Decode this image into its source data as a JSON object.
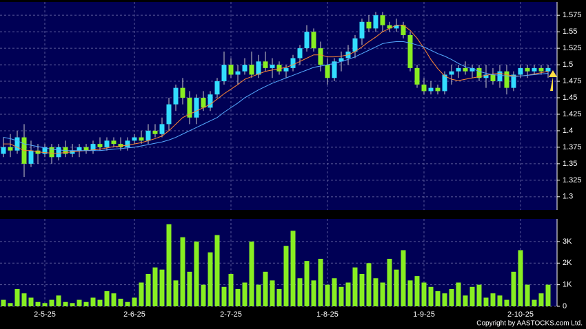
{
  "chart_data": [
    {
      "type": "candlestick",
      "up_color": "#33ddff",
      "down_color": "#88ee22",
      "grid": true,
      "ylim": [
        1.28,
        1.595
      ],
      "yticks": [
        1.3,
        1.325,
        1.35,
        1.375,
        1.4,
        1.425,
        1.45,
        1.475,
        1.5,
        1.525,
        1.55,
        1.575
      ],
      "ohlc": [
        [
          1.365,
          1.39,
          1.36,
          1.375
        ],
        [
          1.375,
          1.395,
          1.36,
          1.37
        ],
        [
          1.37,
          1.4,
          1.365,
          1.39
        ],
        [
          1.39,
          1.41,
          1.33,
          1.35
        ],
        [
          1.35,
          1.385,
          1.345,
          1.37
        ],
        [
          1.37,
          1.38,
          1.35,
          1.365
        ],
        [
          1.365,
          1.38,
          1.36,
          1.375
        ],
        [
          1.375,
          1.38,
          1.35,
          1.36
        ],
        [
          1.36,
          1.38,
          1.355,
          1.375
        ],
        [
          1.375,
          1.385,
          1.36,
          1.365
        ],
        [
          1.365,
          1.38,
          1.36,
          1.37
        ],
        [
          1.37,
          1.38,
          1.36,
          1.375
        ],
        [
          1.375,
          1.38,
          1.365,
          1.37
        ],
        [
          1.37,
          1.385,
          1.365,
          1.38
        ],
        [
          1.38,
          1.39,
          1.37,
          1.375
        ],
        [
          1.375,
          1.39,
          1.37,
          1.385
        ],
        [
          1.385,
          1.39,
          1.375,
          1.38
        ],
        [
          1.38,
          1.39,
          1.37,
          1.375
        ],
        [
          1.375,
          1.39,
          1.37,
          1.385
        ],
        [
          1.385,
          1.395,
          1.38,
          1.39
        ],
        [
          1.39,
          1.4,
          1.38,
          1.385
        ],
        [
          1.385,
          1.41,
          1.38,
          1.4
        ],
        [
          1.4,
          1.41,
          1.39,
          1.395
        ],
        [
          1.395,
          1.42,
          1.39,
          1.41
        ],
        [
          1.41,
          1.45,
          1.4,
          1.44
        ],
        [
          1.44,
          1.47,
          1.43,
          1.465
        ],
        [
          1.465,
          1.48,
          1.44,
          1.45
        ],
        [
          1.45,
          1.46,
          1.41,
          1.42
        ],
        [
          1.42,
          1.455,
          1.41,
          1.45
        ],
        [
          1.45,
          1.46,
          1.43,
          1.435
        ],
        [
          1.435,
          1.46,
          1.43,
          1.455
        ],
        [
          1.455,
          1.48,
          1.45,
          1.475
        ],
        [
          1.475,
          1.52,
          1.47,
          1.5
        ],
        [
          1.5,
          1.51,
          1.48,
          1.485
        ],
        [
          1.485,
          1.5,
          1.47,
          1.49
        ],
        [
          1.49,
          1.51,
          1.485,
          1.5
        ],
        [
          1.5,
          1.52,
          1.48,
          1.485
        ],
        [
          1.485,
          1.515,
          1.48,
          1.505
        ],
        [
          1.505,
          1.52,
          1.49,
          1.495
        ],
        [
          1.495,
          1.51,
          1.48,
          1.5
        ],
        [
          1.5,
          1.505,
          1.485,
          1.49
        ],
        [
          1.49,
          1.5,
          1.48,
          1.495
        ],
        [
          1.495,
          1.515,
          1.49,
          1.51
        ],
        [
          1.51,
          1.53,
          1.5,
          1.525
        ],
        [
          1.525,
          1.56,
          1.52,
          1.55
        ],
        [
          1.55,
          1.555,
          1.52,
          1.525
        ],
        [
          1.525,
          1.535,
          1.49,
          1.5
        ],
        [
          1.5,
          1.51,
          1.47,
          1.48
        ],
        [
          1.48,
          1.51,
          1.475,
          1.505
        ],
        [
          1.505,
          1.52,
          1.49,
          1.51
        ],
        [
          1.51,
          1.53,
          1.5,
          1.52
        ],
        [
          1.52,
          1.545,
          1.51,
          1.54
        ],
        [
          1.54,
          1.57,
          1.53,
          1.565
        ],
        [
          1.565,
          1.575,
          1.55,
          1.555
        ],
        [
          1.555,
          1.58,
          1.55,
          1.575
        ],
        [
          1.575,
          1.58,
          1.55,
          1.56
        ],
        [
          1.56,
          1.565,
          1.55,
          1.555
        ],
        [
          1.555,
          1.57,
          1.55,
          1.56
        ],
        [
          1.56,
          1.565,
          1.54,
          1.545
        ],
        [
          1.545,
          1.55,
          1.49,
          1.495
        ],
        [
          1.495,
          1.5,
          1.465,
          1.47
        ],
        [
          1.47,
          1.48,
          1.455,
          1.46
        ],
        [
          1.46,
          1.475,
          1.455,
          1.465
        ],
        [
          1.465,
          1.47,
          1.455,
          1.46
        ],
        [
          1.46,
          1.49,
          1.455,
          1.485
        ],
        [
          1.485,
          1.5,
          1.47,
          1.49
        ],
        [
          1.49,
          1.5,
          1.48,
          1.495
        ],
        [
          1.495,
          1.505,
          1.485,
          1.49
        ],
        [
          1.49,
          1.5,
          1.48,
          1.495
        ],
        [
          1.495,
          1.5,
          1.475,
          1.48
        ],
        [
          1.48,
          1.5,
          1.465,
          1.485
        ],
        [
          1.485,
          1.495,
          1.47,
          1.475
        ],
        [
          1.475,
          1.5,
          1.465,
          1.49
        ],
        [
          1.49,
          1.5,
          1.455,
          1.465
        ],
        [
          1.465,
          1.49,
          1.46,
          1.485
        ],
        [
          1.485,
          1.5,
          1.48,
          1.495
        ],
        [
          1.495,
          1.5,
          1.48,
          1.49
        ],
        [
          1.49,
          1.5,
          1.485,
          1.495
        ],
        [
          1.495,
          1.5,
          1.485,
          1.49
        ],
        [
          1.49,
          1.5,
          1.48,
          1.495
        ]
      ],
      "lines": [
        {
          "color": "#ff8833",
          "values": [
            1.38,
            1.38,
            1.375,
            1.37,
            1.37,
            1.368,
            1.367,
            1.366,
            1.366,
            1.367,
            1.368,
            1.369,
            1.37,
            1.371,
            1.372,
            1.374,
            1.376,
            1.377,
            1.378,
            1.38,
            1.382,
            1.385,
            1.388,
            1.392,
            1.4,
            1.41,
            1.42,
            1.425,
            1.43,
            1.435,
            1.44,
            1.448,
            1.456,
            1.463,
            1.47,
            1.478,
            1.482,
            1.486,
            1.49,
            1.492,
            1.494,
            1.496,
            1.5,
            1.505,
            1.51,
            1.515,
            1.515,
            1.512,
            1.512,
            1.513,
            1.515,
            1.52,
            1.527,
            1.535,
            1.542,
            1.55,
            1.555,
            1.56,
            1.56,
            1.552,
            1.54,
            1.525,
            1.508,
            1.494,
            1.483,
            1.478,
            1.476,
            1.478,
            1.48,
            1.482,
            1.484,
            1.486,
            1.487,
            1.485,
            1.483,
            1.483,
            1.484,
            1.486,
            1.488,
            1.49
          ]
        },
        {
          "color": "#55aaff",
          "values": [
            1.39,
            1.388,
            1.385,
            1.38,
            1.378,
            1.376,
            1.374,
            1.372,
            1.371,
            1.37,
            1.37,
            1.37,
            1.37,
            1.37,
            1.37,
            1.371,
            1.372,
            1.373,
            1.374,
            1.375,
            1.377,
            1.379,
            1.381,
            1.383,
            1.386,
            1.39,
            1.395,
            1.4,
            1.405,
            1.41,
            1.415,
            1.42,
            1.428,
            1.435,
            1.442,
            1.45,
            1.456,
            1.462,
            1.467,
            1.472,
            1.476,
            1.48,
            1.484,
            1.488,
            1.492,
            1.496,
            1.498,
            1.5,
            1.502,
            1.505,
            1.508,
            1.512,
            1.517,
            1.522,
            1.527,
            1.532,
            1.534,
            1.535,
            1.535,
            1.533,
            1.53,
            1.527,
            1.522,
            1.517,
            1.513,
            1.508,
            1.502,
            1.497,
            1.494,
            1.49,
            1.487,
            1.485,
            1.484,
            1.483,
            1.482,
            1.483,
            1.484,
            1.485,
            1.486,
            1.487
          ]
        }
      ]
    },
    {
      "type": "bar",
      "color": "#88ee22",
      "grid": true,
      "ylim": [
        0,
        4050
      ],
      "yticks": [
        0,
        {
          "value": 1000,
          "label": "1K"
        },
        {
          "value": 2000,
          "label": "2K"
        },
        {
          "value": 3000,
          "label": "3K"
        }
      ],
      "categories": [
        null,
        null,
        null,
        null,
        null,
        null,
        "2-5-25",
        null,
        null,
        null,
        null,
        null,
        null,
        null,
        null,
        null,
        null,
        null,
        null,
        "2-6-25",
        null,
        null,
        null,
        null,
        null,
        null,
        null,
        null,
        null,
        null,
        null,
        null,
        null,
        "2-7-25",
        null,
        null,
        null,
        null,
        null,
        null,
        null,
        null,
        null,
        null,
        null,
        null,
        null,
        "1-8-25",
        null,
        null,
        null,
        null,
        null,
        null,
        null,
        null,
        null,
        null,
        null,
        null,
        null,
        "1-9-25",
        null,
        null,
        null,
        null,
        null,
        null,
        null,
        null,
        null,
        null,
        null,
        null,
        null,
        "2-10-25",
        null,
        null,
        null,
        null
      ],
      "values": [
        300,
        150,
        800,
        600,
        400,
        200,
        150,
        300,
        500,
        200,
        150,
        300,
        200,
        400,
        300,
        700,
        600,
        350,
        200,
        400,
        1100,
        1500,
        1800,
        1700,
        3800,
        1200,
        3200,
        1600,
        3000,
        1000,
        2500,
        3300,
        900,
        1500,
        800,
        1100,
        3000,
        1000,
        1600,
        1200,
        800,
        2800,
        3500,
        1300,
        2100,
        1200,
        2200,
        1000,
        1300,
        900,
        1100,
        1800,
        1500,
        2000,
        1300,
        1100,
        2200,
        1700,
        2600,
        1200,
        1400,
        1100,
        900,
        700,
        600,
        800,
        1100,
        500,
        900,
        1000,
        400,
        600,
        500,
        300,
        1600,
        2600,
        1000,
        300,
        600,
        1000
      ]
    }
  ],
  "footer": "Copyright by AASTOCKS.com Ltd."
}
